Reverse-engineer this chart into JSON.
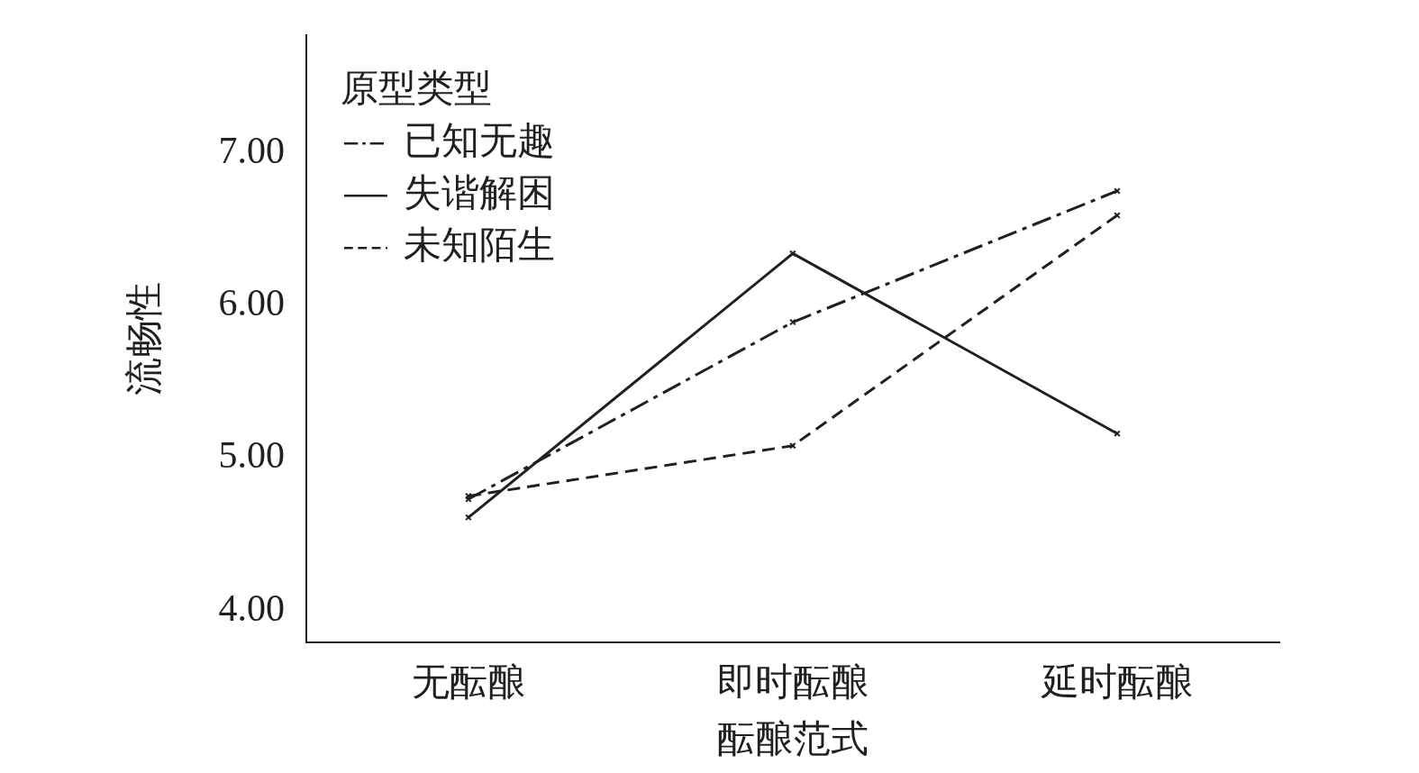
{
  "chart_data": {
    "type": "line",
    "xlabel": "酝酿范式",
    "ylabel": "流畅性",
    "legend_title": "原型类型",
    "categories": [
      "无酝酿",
      "即时酝酿",
      "延时酝酿"
    ],
    "series": [
      {
        "name": "已知无趣",
        "color": "#231f20",
        "line_style": "dashdot",
        "values": [
          4.73,
          5.89,
          6.75
        ]
      },
      {
        "name": "失谐解困",
        "color": "#231f20",
        "line_style": "solid",
        "values": [
          4.61,
          6.34,
          5.16
        ]
      },
      {
        "name": "未知陌生",
        "color": "#231f20",
        "line_style": "dashed",
        "values": [
          4.75,
          5.08,
          6.59
        ]
      }
    ],
    "ylim": [
      3.79,
      7.77
    ],
    "yticks": [
      {
        "value": 4,
        "label": "4.00"
      },
      {
        "value": 5,
        "label": "5.00"
      },
      {
        "value": 6,
        "label": "6.00"
      },
      {
        "value": 7,
        "label": "7.00"
      }
    ],
    "grid": false,
    "legend": "top left",
    "marker": "cross"
  }
}
